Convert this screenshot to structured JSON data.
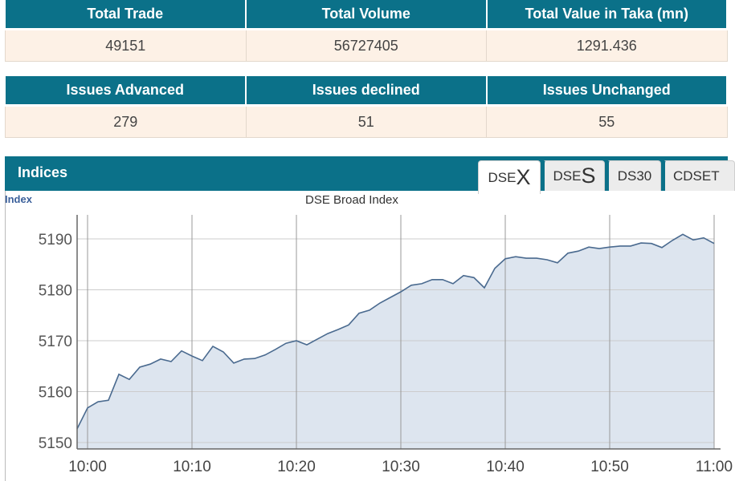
{
  "market_summary": {
    "headers": [
      "Total Trade",
      "Total Volume",
      "Total Value in Taka (mn)"
    ],
    "values": [
      "49151",
      "56727405",
      "1291.436"
    ]
  },
  "issues_summary": {
    "headers": [
      "Issues Advanced",
      "Issues declined",
      "Issues Unchanged"
    ],
    "values": [
      "279",
      "51",
      "55"
    ]
  },
  "indices": {
    "title": "Indices",
    "tabs": [
      {
        "prefix": "DSE",
        "suffix": "X",
        "active": true
      },
      {
        "prefix": "DSE",
        "suffix": "S",
        "active": false
      },
      {
        "prefix": "DS30",
        "suffix": "",
        "active": false
      },
      {
        "prefix": "CDSET",
        "suffix": "",
        "active": false
      }
    ]
  },
  "colors": {
    "header": "#0b7189",
    "row": "#fdf1e6",
    "line": "#4a6a8f",
    "fill": "#dde5ef"
  },
  "chart_data": {
    "type": "area",
    "title": "DSE Broad Index",
    "ylabel": "Index",
    "ylim": [
      5148,
      5194
    ],
    "yticks": [
      5150,
      5160,
      5170,
      5180,
      5190
    ],
    "xticks": [
      "10:00",
      "10:10",
      "10:20",
      "10:30",
      "10:40",
      "10:50",
      "11:00"
    ],
    "xlim": [
      "09:59",
      "11:00"
    ],
    "grid": true,
    "x": [
      "09:59",
      "10:00",
      "10:01",
      "10:02",
      "10:03",
      "10:04",
      "10:05",
      "10:06",
      "10:07",
      "10:08",
      "10:09",
      "10:10",
      "10:11",
      "10:12",
      "10:13",
      "10:14",
      "10:15",
      "10:16",
      "10:17",
      "10:18",
      "10:19",
      "10:20",
      "10:21",
      "10:22",
      "10:23",
      "10:24",
      "10:25",
      "10:26",
      "10:27",
      "10:28",
      "10:29",
      "10:30",
      "10:31",
      "10:32",
      "10:33",
      "10:34",
      "10:35",
      "10:36",
      "10:37",
      "10:38",
      "10:39",
      "10:40",
      "10:41",
      "10:42",
      "10:43",
      "10:44",
      "10:45",
      "10:46",
      "10:47",
      "10:48",
      "10:49",
      "10:50",
      "10:51",
      "10:52",
      "10:53",
      "10:54",
      "10:55",
      "10:56",
      "10:57",
      "10:58",
      "10:59",
      "11:00"
    ],
    "values": [
      5152.7,
      5156.8,
      5158.0,
      5158.3,
      5163.4,
      5162.4,
      5164.8,
      5165.4,
      5166.4,
      5165.9,
      5168.0,
      5167.0,
      5166.1,
      5168.9,
      5167.8,
      5165.6,
      5166.4,
      5166.5,
      5167.2,
      5168.3,
      5169.5,
      5170.0,
      5169.2,
      5170.3,
      5171.4,
      5172.2,
      5173.1,
      5175.4,
      5176.0,
      5177.4,
      5178.5,
      5179.6,
      5180.9,
      5181.2,
      5182.0,
      5182.0,
      5181.2,
      5182.8,
      5182.4,
      5180.4,
      5184.2,
      5186.1,
      5186.5,
      5186.2,
      5186.2,
      5185.9,
      5185.3,
      5187.2,
      5187.6,
      5188.4,
      5188.1,
      5188.4,
      5188.6,
      5188.6,
      5189.2,
      5189.1,
      5188.3,
      5189.7,
      5190.9,
      5189.8,
      5190.2,
      5189.1
    ]
  }
}
